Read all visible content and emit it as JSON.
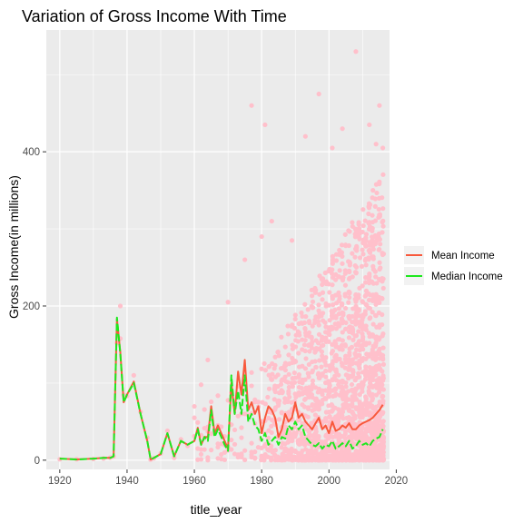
{
  "chart_data": {
    "type": "scatter",
    "title": "Variation of Gross Income With Time",
    "xlabel": "title_year",
    "ylabel": "Gross Income(in millions)",
    "xlim": [
      1916,
      2018
    ],
    "ylim": [
      -12,
      558
    ],
    "x_ticks": [
      1920,
      1940,
      1960,
      1980,
      2000,
      2020
    ],
    "y_ticks": [
      0,
      200,
      400
    ],
    "grid": true,
    "legend_position": "right",
    "colors": {
      "panel": "#ebebeb",
      "grid": "#ffffff",
      "points": "#ffc0cb",
      "mean": "#f8593c",
      "median": "#1ee81e"
    },
    "series": [
      {
        "name": "Mean Income",
        "type": "line",
        "color": "#f8593c",
        "x": [
          1920,
          1925,
          1930,
          1933,
          1935,
          1936,
          1937,
          1938,
          1939,
          1940,
          1942,
          1944,
          1946,
          1947,
          1948,
          1950,
          1952,
          1954,
          1956,
          1958,
          1960,
          1961,
          1962,
          1963,
          1964,
          1965,
          1966,
          1967,
          1968,
          1969,
          1970,
          1971,
          1972,
          1973,
          1974,
          1975,
          1976,
          1977,
          1978,
          1979,
          1980,
          1981,
          1982,
          1983,
          1984,
          1985,
          1986,
          1987,
          1988,
          1989,
          1990,
          1991,
          1992,
          1993,
          1994,
          1995,
          1996,
          1997,
          1998,
          1999,
          2000,
          2001,
          2002,
          2003,
          2004,
          2005,
          2006,
          2007,
          2008,
          2009,
          2010,
          2011,
          2012,
          2013,
          2014,
          2015,
          2016
        ],
        "values": [
          2,
          1,
          2,
          3,
          3,
          5,
          183,
          140,
          75,
          85,
          102,
          60,
          25,
          1,
          3,
          8,
          35,
          5,
          25,
          20,
          25,
          42,
          20,
          30,
          30,
          70,
          35,
          45,
          35,
          25,
          15,
          100,
          60,
          115,
          85,
          130,
          65,
          75,
          60,
          70,
          35,
          55,
          70,
          65,
          55,
          30,
          40,
          60,
          50,
          55,
          75,
          55,
          60,
          50,
          45,
          40,
          48,
          55,
          40,
          45,
          35,
          50,
          38,
          40,
          45,
          42,
          48,
          40,
          40,
          45,
          48,
          50,
          52,
          55,
          60,
          65,
          72
        ]
      },
      {
        "name": "Median Income",
        "type": "line",
        "color": "#1ee81e",
        "x": [
          1920,
          1925,
          1930,
          1933,
          1935,
          1936,
          1937,
          1938,
          1939,
          1940,
          1942,
          1944,
          1946,
          1947,
          1948,
          1950,
          1952,
          1954,
          1956,
          1958,
          1960,
          1961,
          1962,
          1963,
          1964,
          1965,
          1966,
          1967,
          1968,
          1969,
          1970,
          1971,
          1972,
          1973,
          1974,
          1975,
          1976,
          1977,
          1978,
          1979,
          1980,
          1981,
          1982,
          1983,
          1984,
          1985,
          1986,
          1987,
          1988,
          1989,
          1990,
          1991,
          1992,
          1993,
          1994,
          1995,
          1996,
          1997,
          1998,
          1999,
          2000,
          2001,
          2002,
          2003,
          2004,
          2005,
          2006,
          2007,
          2008,
          2009,
          2010,
          2011,
          2012,
          2013,
          2014,
          2015,
          2016
        ],
        "values": [
          2,
          1,
          2,
          3,
          3,
          5,
          185,
          138,
          75,
          85,
          100,
          60,
          25,
          1,
          3,
          8,
          35,
          5,
          25,
          20,
          25,
          40,
          20,
          30,
          25,
          65,
          30,
          40,
          30,
          20,
          12,
          110,
          60,
          90,
          60,
          110,
          50,
          60,
          45,
          40,
          25,
          35,
          20,
          25,
          30,
          20,
          30,
          28,
          45,
          40,
          50,
          40,
          45,
          30,
          25,
          20,
          18,
          22,
          15,
          20,
          18,
          25,
          15,
          18,
          22,
          18,
          25,
          15,
          18,
          25,
          20,
          22,
          18,
          25,
          28,
          30,
          40
        ]
      }
    ],
    "scatter_summary": {
      "points_color": "#ffc0cb",
      "outliers": [
        {
          "x": 1938,
          "y": 200
        },
        {
          "x": 1964,
          "y": 130
        },
        {
          "x": 1970,
          "y": 205
        },
        {
          "x": 1975,
          "y": 260
        },
        {
          "x": 1977,
          "y": 460
        },
        {
          "x": 1980,
          "y": 290
        },
        {
          "x": 1981,
          "y": 435
        },
        {
          "x": 1983,
          "y": 310
        },
        {
          "x": 1989,
          "y": 285
        },
        {
          "x": 1993,
          "y": 420
        },
        {
          "x": 1997,
          "y": 475
        },
        {
          "x": 2001,
          "y": 405
        },
        {
          "x": 2004,
          "y": 430
        },
        {
          "x": 2008,
          "y": 530
        },
        {
          "x": 2012,
          "y": 435
        },
        {
          "x": 2014,
          "y": 410
        },
        {
          "x": 2015,
          "y": 460
        },
        {
          "x": 2016,
          "y": 405
        }
      ]
    }
  }
}
